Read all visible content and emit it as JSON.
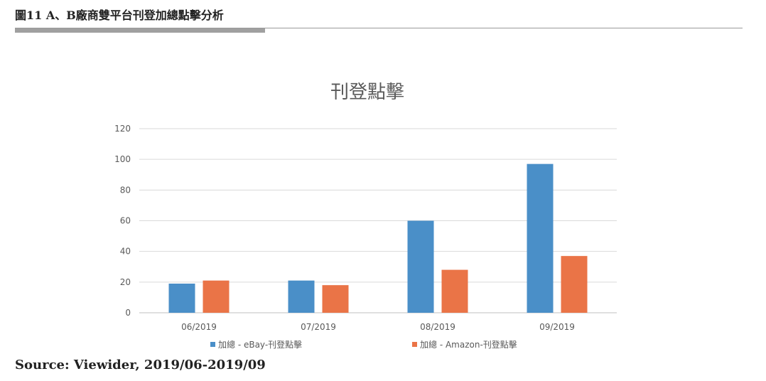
{
  "figure_title": "圖11 A、B廠商雙平台刊登加總點擊分析",
  "source": "Source: Viewider, 2019/06-2019/09",
  "chart_data": {
    "type": "bar",
    "title": "刊登點擊",
    "categories": [
      "06/2019",
      "07/2019",
      "08/2019",
      "09/2019"
    ],
    "series": [
      {
        "name": "加總 - eBay-刊登點擊",
        "values": [
          19,
          21,
          60,
          97
        ],
        "color": "#4a8fc8"
      },
      {
        "name": "加總 - Amazon-刊登點擊",
        "values": [
          21,
          18,
          28,
          37
        ],
        "color": "#ea7447"
      }
    ],
    "ylim": [
      0,
      120
    ],
    "yticks": [
      0,
      20,
      40,
      60,
      80,
      100,
      120
    ],
    "grid": true,
    "legend": "bottom"
  }
}
